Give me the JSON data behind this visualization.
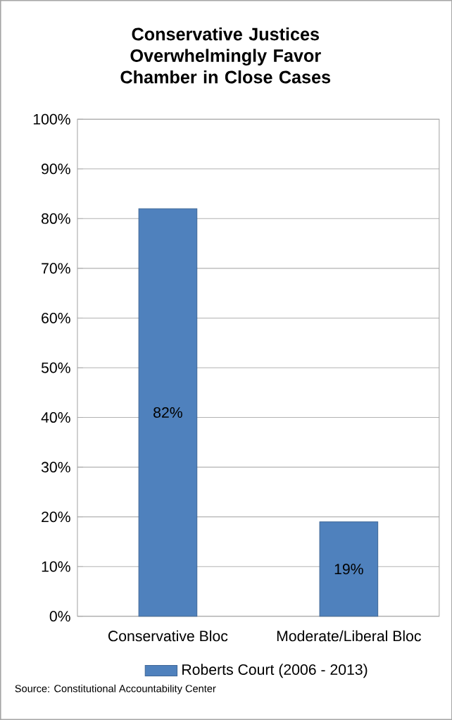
{
  "chart_data": {
    "type": "bar",
    "title": "Conservative Justices Overwhelmingly Favor Chamber in Close Cases",
    "categories": [
      "Conservative Bloc",
      "Moderate/Liberal Bloc"
    ],
    "series": [
      {
        "name": "Roberts Court (2006 - 2013)",
        "color": "#4f81bd",
        "values": [
          82,
          19
        ],
        "value_labels": [
          "82%",
          "19%"
        ]
      }
    ],
    "ylim": [
      0,
      100
    ],
    "yticks": [
      {
        "value": 0,
        "label": "0%"
      },
      {
        "value": 10,
        "label": "10%"
      },
      {
        "value": 20,
        "label": "20%"
      },
      {
        "value": 30,
        "label": "30%"
      },
      {
        "value": 40,
        "label": "40%"
      },
      {
        "value": 50,
        "label": "50%"
      },
      {
        "value": 60,
        "label": "60%"
      },
      {
        "value": 70,
        "label": "70%"
      },
      {
        "value": 80,
        "label": "80%"
      },
      {
        "value": 90,
        "label": "90%"
      },
      {
        "value": 100,
        "label": "100%"
      }
    ],
    "grid": "y",
    "legend": "bottom",
    "annotations": [
      "Source: Constitutional Accountability Center"
    ]
  }
}
